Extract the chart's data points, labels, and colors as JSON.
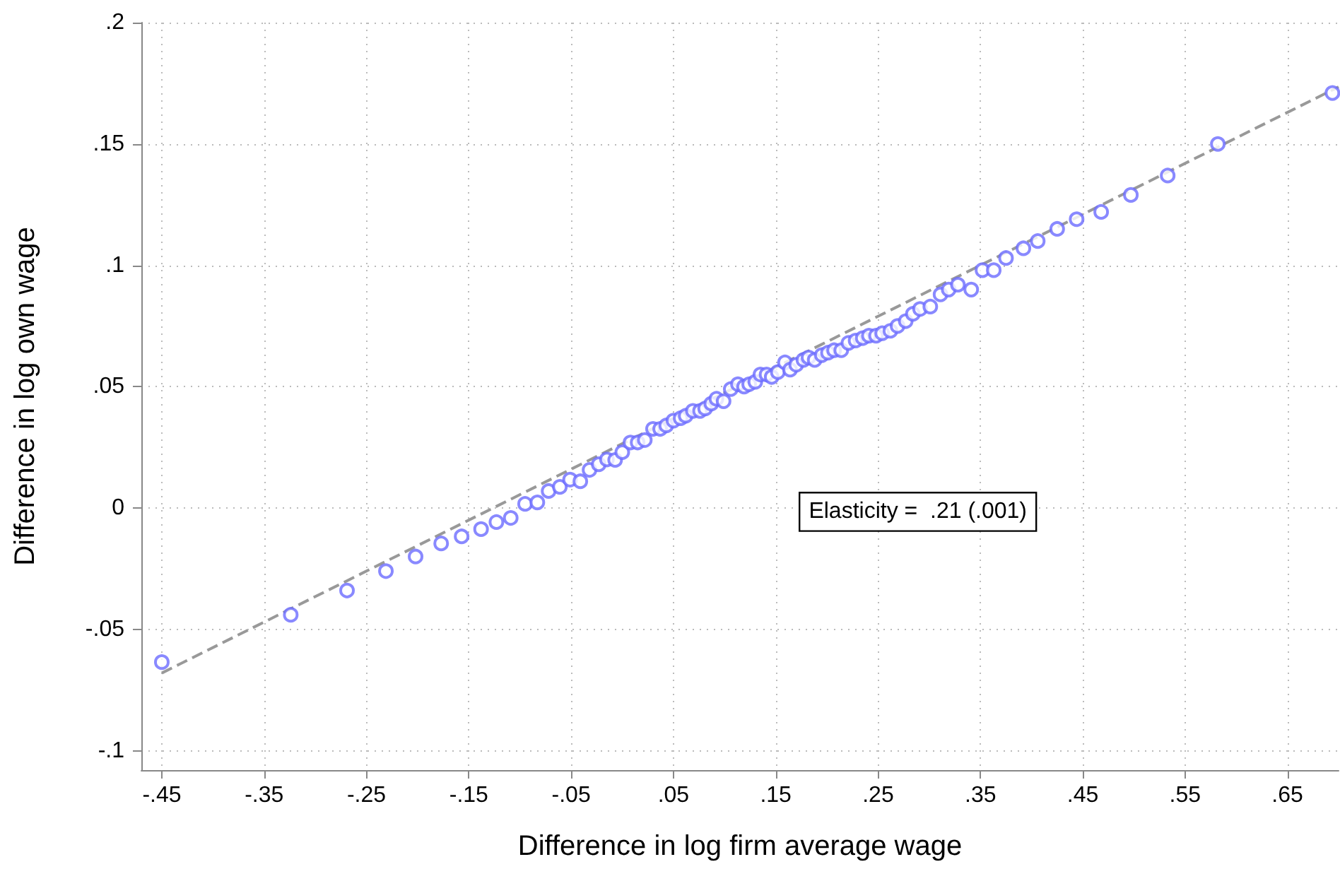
{
  "chart_data": {
    "type": "scatter",
    "xlabel": "Difference in log firm average wage",
    "ylabel": "Difference in log own wage",
    "annotations": [
      "Elasticity =  .21 (.001)"
    ],
    "xlim": [
      -0.47,
      0.7
    ],
    "ylim": [
      -0.108,
      0.2
    ],
    "xticks": [
      {
        "value": -0.45,
        "label": "-.45"
      },
      {
        "value": -0.35,
        "label": "-.35"
      },
      {
        "value": -0.25,
        "label": "-.25"
      },
      {
        "value": -0.15,
        "label": "-.15"
      },
      {
        "value": -0.05,
        "label": "-.05"
      },
      {
        "value": 0.05,
        "label": ".05"
      },
      {
        "value": 0.15,
        "label": ".15"
      },
      {
        "value": 0.25,
        "label": ".25"
      },
      {
        "value": 0.35,
        "label": ".35"
      },
      {
        "value": 0.45,
        "label": ".45"
      },
      {
        "value": 0.55,
        "label": ".55"
      },
      {
        "value": 0.65,
        "label": ".65"
      }
    ],
    "yticks": [
      {
        "value": -0.1,
        "label": "-.1"
      },
      {
        "value": -0.05,
        "label": "-.05"
      },
      0,
      {
        "value": 0.05,
        "label": ".05"
      },
      {
        "value": 0.1,
        "label": ".1"
      },
      {
        "value": 0.15,
        "label": ".15"
      },
      {
        "value": 0.2,
        "label": ".2"
      }
    ],
    "grid": true,
    "series": [
      {
        "marker": "circle",
        "color": "#6b6bff",
        "x": [
          -0.45,
          -0.324,
          -0.269,
          -0.231,
          -0.202,
          -0.177,
          -0.157,
          -0.138,
          -0.123,
          -0.109,
          -0.095,
          -0.083,
          -0.072,
          -0.061,
          -0.051,
          -0.041,
          -0.032,
          -0.023,
          -0.015,
          -0.007,
          0.0,
          0.008,
          0.015,
          0.022,
          0.03,
          0.037,
          0.043,
          0.05,
          0.057,
          0.062,
          0.069,
          0.076,
          0.081,
          0.087,
          0.092,
          0.099,
          0.106,
          0.113,
          0.119,
          0.124,
          0.13,
          0.135,
          0.141,
          0.146,
          0.152,
          0.159,
          0.164,
          0.17,
          0.177,
          0.182,
          0.188,
          0.195,
          0.201,
          0.207,
          0.214,
          0.221,
          0.228,
          0.235,
          0.241,
          0.248,
          0.254,
          0.262,
          0.269,
          0.277,
          0.284,
          0.291,
          0.301,
          0.311,
          0.319,
          0.328,
          0.341,
          0.352,
          0.363,
          0.375,
          0.392,
          0.406,
          0.425,
          0.444,
          0.468,
          0.497,
          0.533,
          0.582,
          0.694
        ],
        "values": [
          -0.0635,
          -0.044,
          -0.034,
          -0.026,
          -0.02,
          -0.0146,
          -0.0117,
          -0.0087,
          -0.0058,
          -0.0041,
          0.0017,
          0.0023,
          0.007,
          0.0087,
          0.0117,
          0.011,
          0.0157,
          0.018,
          0.02,
          0.0198,
          0.023,
          0.027,
          0.027,
          0.028,
          0.0326,
          0.0326,
          0.034,
          0.036,
          0.037,
          0.038,
          0.04,
          0.04,
          0.041,
          0.043,
          0.045,
          0.044,
          0.049,
          0.051,
          0.05,
          0.051,
          0.052,
          0.055,
          0.055,
          0.054,
          0.056,
          0.06,
          0.057,
          0.059,
          0.061,
          0.062,
          0.061,
          0.063,
          0.064,
          0.065,
          0.065,
          0.068,
          0.069,
          0.07,
          0.071,
          0.071,
          0.072,
          0.073,
          0.075,
          0.077,
          0.08,
          0.082,
          0.083,
          0.088,
          0.09,
          0.092,
          0.09,
          0.098,
          0.098,
          0.103,
          0.107,
          0.11,
          0.115,
          0.119,
          0.122,
          0.129,
          0.137,
          0.15,
          0.171
        ]
      },
      {
        "type": "line",
        "marker": "none",
        "line_style": "dashed",
        "color": "#999999",
        "x": [
          -0.45,
          0.7
        ],
        "values": [
          -0.068,
          0.1735
        ]
      }
    ]
  }
}
